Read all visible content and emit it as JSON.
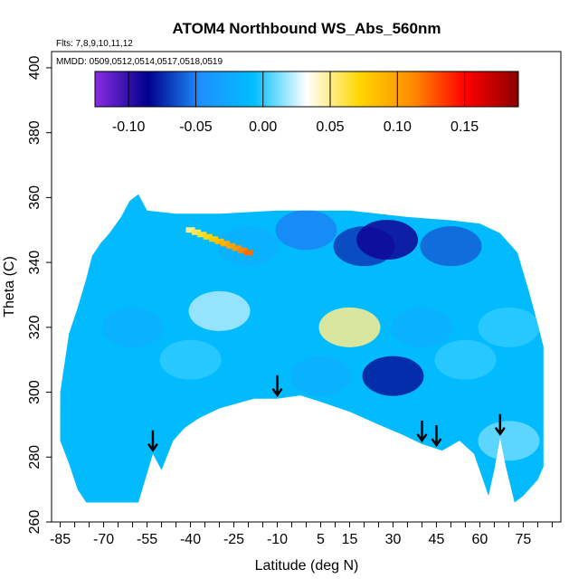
{
  "chart_data": {
    "type": "heatmap",
    "title": "ATOM4 Northbound WS_Abs_560nm",
    "flights_note": "Flts: 7,8,9,10,11,12",
    "dates_note": "MMDD: 0509,0512,0514,0517,0518,0519",
    "xlabel": "Latitude (deg N)",
    "ylabel": "Theta (C)",
    "xlim": [
      -88,
      88
    ],
    "ylim": [
      260,
      405
    ],
    "x_ticks": [
      -85,
      -70,
      -55,
      -40,
      -25,
      -10,
      5,
      15,
      30,
      45,
      60,
      75
    ],
    "y_ticks": [
      260,
      280,
      300,
      320,
      340,
      360,
      380,
      400
    ],
    "colorbar": {
      "min": -0.125,
      "max": 0.19,
      "ticks": [
        -0.1,
        -0.05,
        0.0,
        0.05,
        0.1,
        0.15
      ],
      "tick_labels": [
        "-0.10",
        "-0.05",
        "0.00",
        "0.05",
        "0.10",
        "0.15"
      ],
      "colors": [
        "#8a2be2",
        "#00008b",
        "#1e90ff",
        "#00bfff",
        "#ffffff",
        "#ffd700",
        "#ff8c00",
        "#ff0000",
        "#8b0000"
      ]
    },
    "outline_top": [
      [
        -85,
        300
      ],
      [
        -82,
        318
      ],
      [
        -79,
        326
      ],
      [
        -76,
        335
      ],
      [
        -74,
        342
      ],
      [
        -71,
        346
      ],
      [
        -68,
        349
      ],
      [
        -64,
        354
      ],
      [
        -61,
        359
      ],
      [
        -58,
        361
      ],
      [
        -55,
        356
      ],
      [
        -45,
        355
      ],
      [
        -30,
        355
      ],
      [
        -10,
        356
      ],
      [
        15,
        356
      ],
      [
        35,
        354
      ],
      [
        50,
        353
      ],
      [
        60,
        352
      ],
      [
        67,
        349
      ],
      [
        73,
        343
      ],
      [
        77,
        331
      ],
      [
        80,
        321
      ],
      [
        82,
        314
      ]
    ],
    "outline_bottom": [
      [
        -85,
        285
      ],
      [
        -82,
        278
      ],
      [
        -79,
        270
      ],
      [
        -76,
        266
      ],
      [
        -71,
        266
      ],
      [
        -66,
        266
      ],
      [
        -58,
        266
      ],
      [
        -53,
        281
      ],
      [
        -50,
        276
      ],
      [
        -46,
        285
      ],
      [
        -42,
        289
      ],
      [
        -37,
        292
      ],
      [
        -30,
        295
      ],
      [
        -18,
        298
      ],
      [
        -10,
        298
      ],
      [
        -2,
        299
      ],
      [
        5,
        297
      ],
      [
        15,
        294
      ],
      [
        25,
        290
      ],
      [
        33,
        287
      ],
      [
        40,
        284
      ],
      [
        47,
        282
      ],
      [
        53,
        285
      ],
      [
        58,
        281
      ],
      [
        63,
        268
      ],
      [
        65,
        276
      ],
      [
        67,
        286
      ],
      [
        69,
        277
      ],
      [
        72,
        266
      ],
      [
        75,
        268
      ],
      [
        80,
        273
      ],
      [
        82,
        277
      ]
    ],
    "field_nodes": [
      {
        "lat": -70,
        "theta": 300,
        "value": -0.01
      },
      {
        "lat": -60,
        "theta": 320,
        "value": -0.02
      },
      {
        "lat": -50,
        "theta": 340,
        "value": -0.01
      },
      {
        "lat": -40,
        "theta": 310,
        "value": 0.0
      },
      {
        "lat": -30,
        "theta": 325,
        "value": 0.02
      },
      {
        "lat": -20,
        "theta": 345,
        "value": -0.02
      },
      {
        "lat": 0,
        "theta": 350,
        "value": -0.05
      },
      {
        "lat": 20,
        "theta": 345,
        "value": -0.07
      },
      {
        "lat": 28,
        "theta": 347,
        "value": -0.09
      },
      {
        "lat": 50,
        "theta": 345,
        "value": -0.06
      },
      {
        "lat": 15,
        "theta": 320,
        "value": 0.05
      },
      {
        "lat": 5,
        "theta": 305,
        "value": -0.02
      },
      {
        "lat": 30,
        "theta": 305,
        "value": -0.08
      },
      {
        "lat": 40,
        "theta": 320,
        "value": -0.02
      },
      {
        "lat": 55,
        "theta": 310,
        "value": 0.0
      },
      {
        "lat": 70,
        "theta": 320,
        "value": 0.0
      },
      {
        "lat": -80,
        "theta": 290,
        "value": -0.01
      },
      {
        "lat": 70,
        "theta": 285,
        "value": 0.01
      }
    ],
    "high_streak": {
      "start": [
        -40,
        350
      ],
      "end": [
        -20,
        343
      ],
      "value": 0.12
    },
    "arrows_lat": [
      -53,
      -10,
      40,
      45,
      67
    ]
  }
}
